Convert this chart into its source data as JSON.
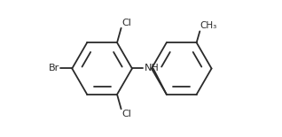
{
  "background_color": "#ffffff",
  "bond_color": "#2a2a2a",
  "text_color": "#2a2a2a",
  "label_Br": "Br",
  "label_Cl1": "Cl",
  "label_Cl2": "Cl",
  "label_NH": "NH",
  "label_CH3": "CH₃",
  "figsize": [
    3.18,
    1.55
  ],
  "dpi": 100,
  "lw": 1.3
}
